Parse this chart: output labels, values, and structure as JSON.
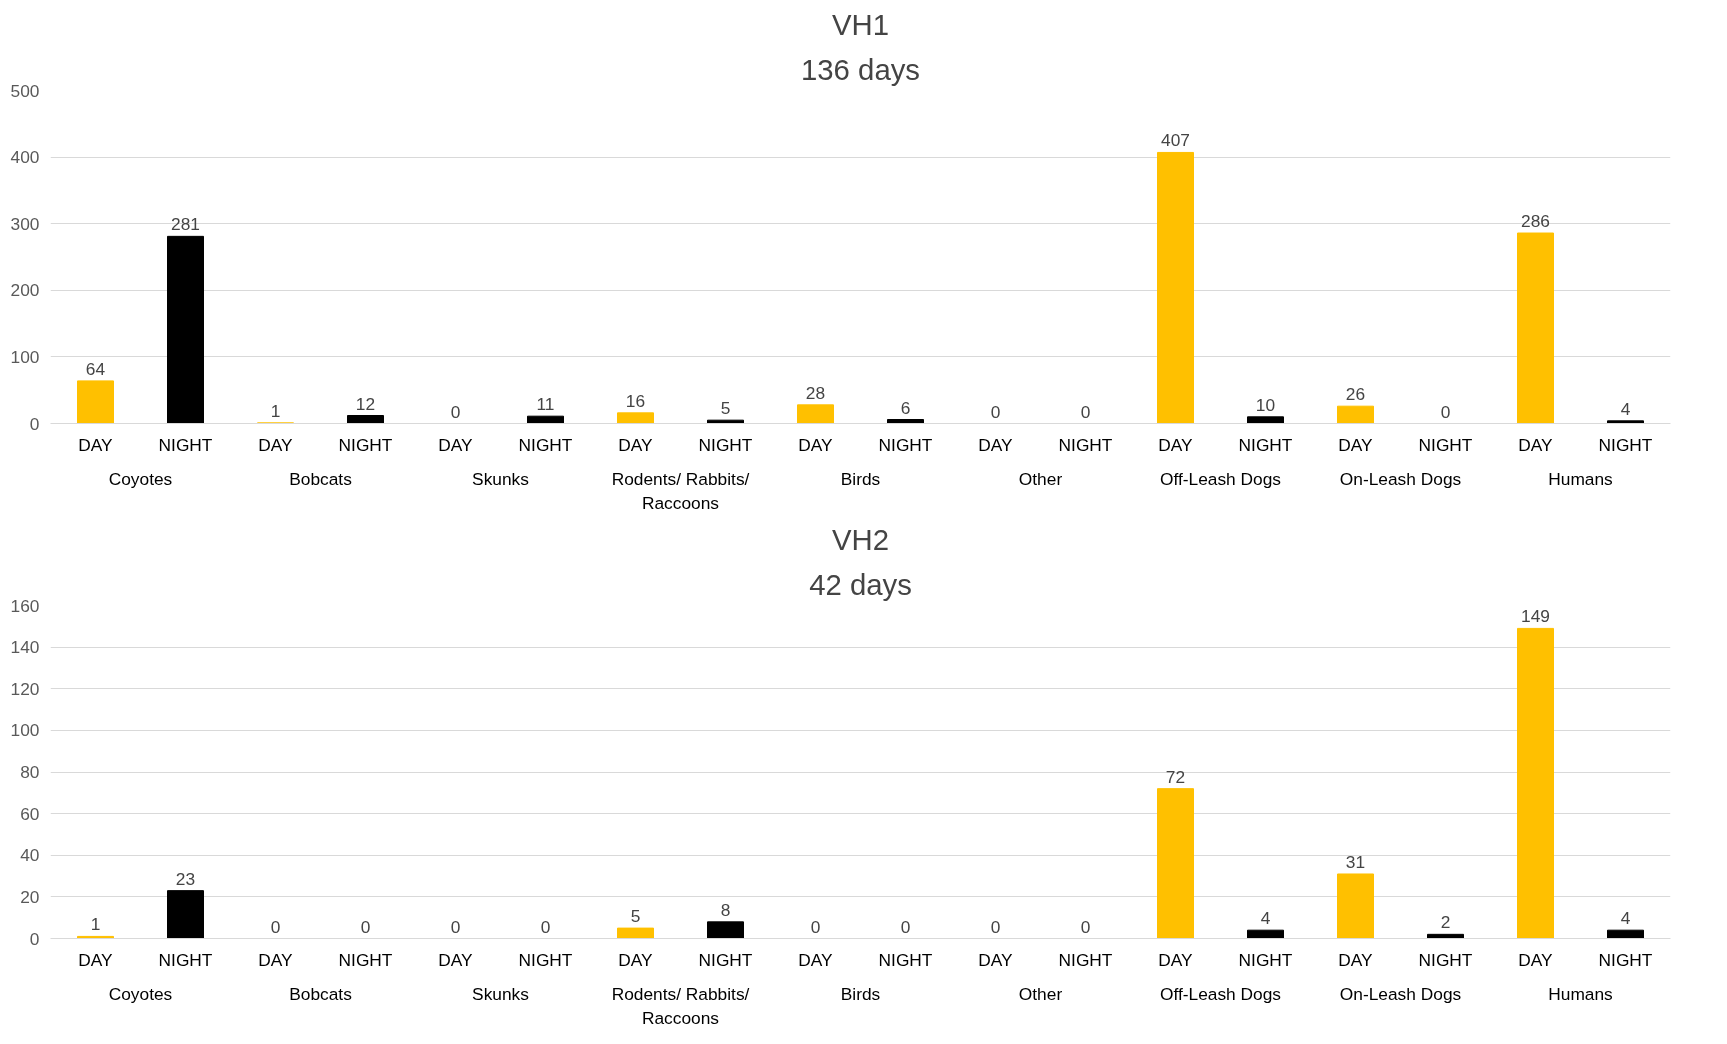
{
  "chart_data": [
    {
      "type": "bar",
      "title": "VH1",
      "subtitle": "136 days",
      "categories": [
        "Coyotes",
        "Bobcats",
        "Skunks",
        "Rodents/ Rabbits/ Raccoons",
        "Birds",
        "Other",
        "Off-Leash Dogs",
        "On-Leash Dogs",
        "Humans"
      ],
      "series": [
        {
          "name": "DAY",
          "color": "#ffc000",
          "values": [
            64,
            1,
            0,
            16,
            28,
            0,
            407,
            26,
            286
          ]
        },
        {
          "name": "NIGHT",
          "color": "#000000",
          "values": [
            281,
            12,
            11,
            5,
            6,
            0,
            10,
            0,
            4
          ]
        }
      ],
      "ylim": [
        0,
        500
      ],
      "yticks": [
        0,
        100,
        200,
        300,
        400,
        500
      ],
      "grid": "y",
      "data_labels": true,
      "legend": false
    },
    {
      "type": "bar",
      "title": "VH2",
      "subtitle": "42 days",
      "categories": [
        "Coyotes",
        "Bobcats",
        "Skunks",
        "Rodents/ Rabbits/ Raccoons",
        "Birds",
        "Other",
        "Off-Leash Dogs",
        "On-Leash Dogs",
        "Humans"
      ],
      "series": [
        {
          "name": "DAY",
          "color": "#ffc000",
          "values": [
            1,
            0,
            0,
            5,
            0,
            0,
            72,
            31,
            149
          ]
        },
        {
          "name": "NIGHT",
          "color": "#000000",
          "values": [
            23,
            0,
            0,
            8,
            0,
            0,
            4,
            2,
            4
          ]
        }
      ],
      "ylim": [
        0,
        160
      ],
      "yticks": [
        0,
        20,
        40,
        60,
        80,
        100,
        120,
        140,
        160
      ],
      "grid": "y",
      "data_labels": true,
      "legend": false
    }
  ]
}
